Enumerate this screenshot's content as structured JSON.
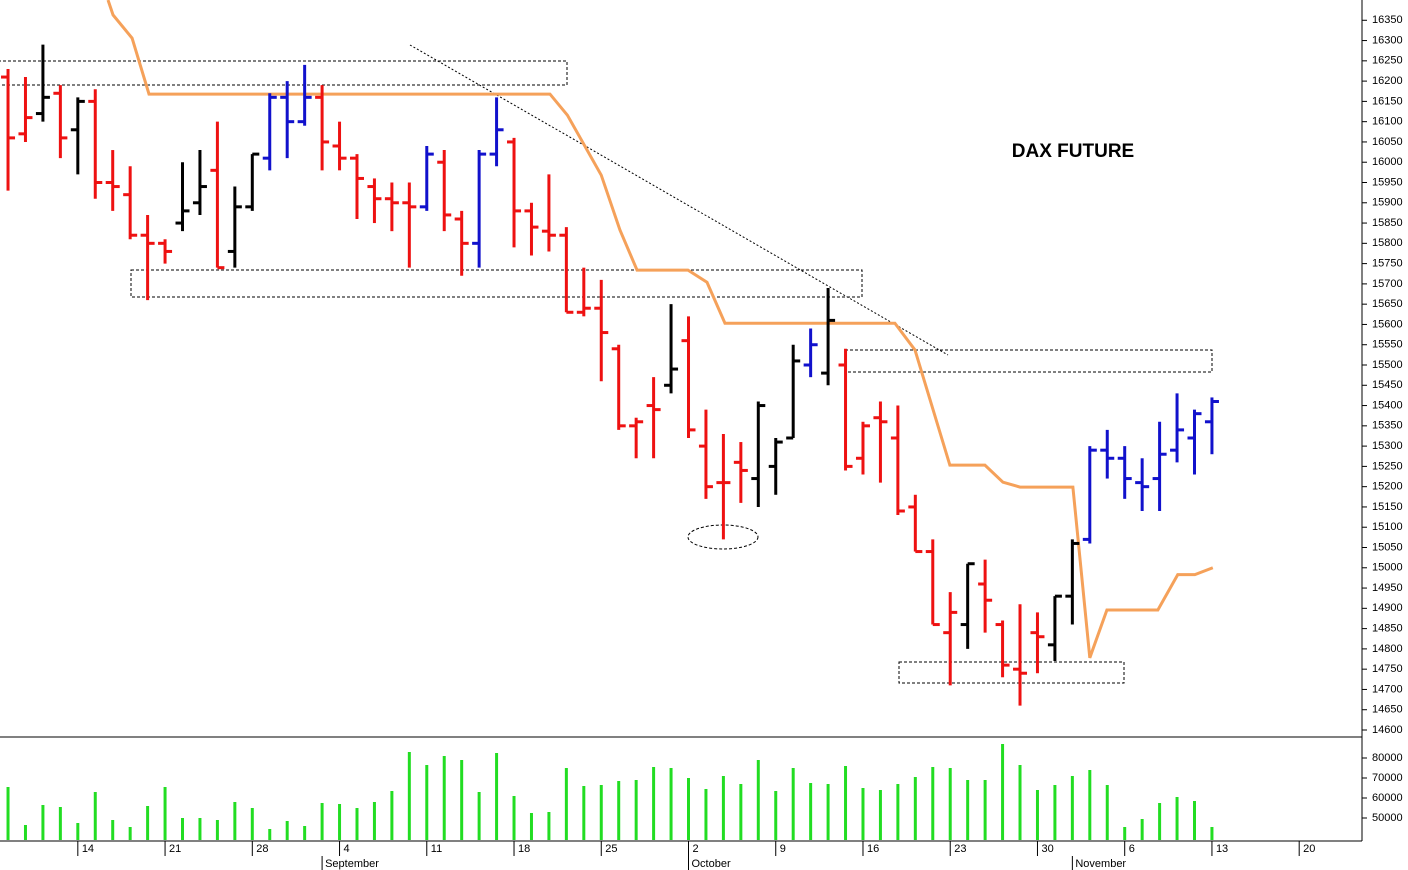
{
  "chart_data": {
    "type": "ohlc",
    "title": "DAX FUTURE",
    "x": [
      0,
      1,
      2,
      3,
      4,
      5,
      6,
      7,
      8,
      9,
      10,
      11,
      12,
      13,
      14,
      15,
      16,
      17,
      18,
      19,
      20,
      21,
      22,
      23,
      24,
      25,
      26,
      27,
      28,
      29,
      30,
      31,
      32,
      33,
      34,
      35,
      36,
      37,
      38,
      39,
      40,
      41,
      42,
      43,
      44,
      45,
      46,
      47,
      48,
      49,
      50,
      51,
      52,
      53,
      54,
      55,
      56,
      57,
      58,
      59,
      60,
      61,
      62,
      63,
      64,
      65,
      66,
      67,
      68,
      69
    ],
    "open": [
      16210,
      16070,
      16120,
      16170,
      16080,
      16150,
      15950,
      15920,
      15820,
      15800,
      15850,
      15900,
      15980,
      15780,
      15890,
      16010,
      16160,
      16100,
      16160,
      16040,
      16010,
      15940,
      15910,
      15900,
      15890,
      16000,
      15860,
      15800,
      16020,
      16050,
      15880,
      15830,
      15820,
      15630,
      15640,
      15540,
      15350,
      15400,
      15450,
      15560,
      15300,
      15210,
      15260,
      15220,
      15250,
      15320,
      15500,
      15480,
      15500,
      15270,
      15370,
      15320,
      15150,
      15040,
      14840,
      14860,
      14960,
      14860,
      14750,
      14840,
      14810,
      14930,
      15070,
      15290,
      15270,
      15210,
      15220,
      15290,
      15320,
      15360
    ],
    "high": [
      16230,
      16210,
      16290,
      16190,
      16160,
      16180,
      16030,
      15990,
      15870,
      15810,
      16000,
      16030,
      16100,
      15940,
      16020,
      16170,
      16200,
      16240,
      16190,
      16100,
      16020,
      15960,
      15950,
      15950,
      16040,
      16030,
      15880,
      16030,
      16160,
      16060,
      15900,
      15970,
      15840,
      15740,
      15710,
      15550,
      15370,
      15470,
      15650,
      15620,
      15390,
      15330,
      15310,
      15410,
      15320,
      15550,
      15590,
      15690,
      15540,
      15360,
      15410,
      15400,
      15180,
      15070,
      14940,
      15010,
      15020,
      14870,
      14910,
      14890,
      14930,
      15070,
      15300,
      15340,
      15300,
      15270,
      15360,
      15430,
      15390,
      15420
    ],
    "low": [
      15930,
      16050,
      16100,
      16010,
      15970,
      15910,
      15880,
      15810,
      15660,
      15750,
      15830,
      15870,
      15740,
      15740,
      15880,
      15980,
      16010,
      16090,
      15980,
      15980,
      15860,
      15850,
      15830,
      15740,
      15880,
      15830,
      15720,
      15740,
      15990,
      15790,
      15770,
      15780,
      15630,
      15620,
      15460,
      15340,
      15270,
      15270,
      15430,
      15320,
      15170,
      15070,
      15160,
      15150,
      15180,
      15320,
      15470,
      15450,
      15240,
      15230,
      15210,
      15130,
      15040,
      14860,
      14710,
      14800,
      14840,
      14730,
      14660,
      14740,
      14770,
      14860,
      15060,
      15220,
      15170,
      15140,
      15140,
      15260,
      15230,
      15280
    ],
    "close": [
      16060,
      16110,
      16160,
      16060,
      16150,
      15950,
      15940,
      15820,
      15800,
      15780,
      15880,
      15940,
      15740,
      15890,
      16020,
      16160,
      16100,
      16160,
      16050,
      16010,
      15960,
      15910,
      15900,
      15890,
      16020,
      15870,
      15800,
      16020,
      16080,
      15880,
      15840,
      15820,
      15630,
      15640,
      15580,
      15350,
      15360,
      15390,
      15490,
      15340,
      15200,
      15210,
      15240,
      15400,
      15310,
      15510,
      15550,
      15610,
      15250,
      15350,
      15360,
      15140,
      15040,
      14860,
      14890,
      15010,
      14920,
      14760,
      14740,
      14830,
      14930,
      15060,
      15290,
      15270,
      15220,
      15200,
      15280,
      15340,
      15380,
      15410
    ],
    "bar_colors": [
      "#ee1111",
      "#ee1111",
      "#000000",
      "#ee1111",
      "#000000",
      "#ee1111",
      "#ee1111",
      "#ee1111",
      "#ee1111",
      "#ee1111",
      "#000000",
      "#000000",
      "#ee1111",
      "#000000",
      "#000000",
      "#1111cc",
      "#1111cc",
      "#1111cc",
      "#ee1111",
      "#ee1111",
      "#ee1111",
      "#ee1111",
      "#ee1111",
      "#ee1111",
      "#1111cc",
      "#ee1111",
      "#ee1111",
      "#1111cc",
      "#1111cc",
      "#ee1111",
      "#ee1111",
      "#ee1111",
      "#ee1111",
      "#ee1111",
      "#ee1111",
      "#ee1111",
      "#ee1111",
      "#ee1111",
      "#000000",
      "#ee1111",
      "#ee1111",
      "#ee1111",
      "#ee1111",
      "#000000",
      "#000000",
      "#000000",
      "#1111cc",
      "#000000",
      "#ee1111",
      "#ee1111",
      "#ee1111",
      "#ee1111",
      "#ee1111",
      "#ee1111",
      "#ee1111",
      "#000000",
      "#ee1111",
      "#ee1111",
      "#ee1111",
      "#ee1111",
      "#000000",
      "#000000",
      "#1111cc",
      "#1111cc",
      "#1111cc",
      "#1111cc",
      "#1111cc",
      "#1111cc",
      "#1111cc",
      "#1111cc"
    ],
    "xlim": [
      -0.46,
      77.6
    ],
    "ylim": [
      14600,
      16400
    ],
    "yticks": [
      14600,
      14650,
      14700,
      14750,
      14800,
      14850,
      14900,
      14950,
      15000,
      15050,
      15100,
      15150,
      15200,
      15250,
      15300,
      15350,
      15400,
      15450,
      15500,
      15550,
      15600,
      15650,
      15700,
      15750,
      15800,
      15850,
      15900,
      15950,
      16000,
      16050,
      16100,
      16150,
      16200,
      16250,
      16300,
      16350
    ],
    "xticks": [
      {
        "value": 4,
        "label": "14"
      },
      {
        "value": 9,
        "label": "21"
      },
      {
        "value": 14,
        "label": "28"
      },
      {
        "value": 19,
        "label": "4"
      },
      {
        "value": 24,
        "label": "11"
      },
      {
        "value": 29,
        "label": "18"
      },
      {
        "value": 34,
        "label": "25"
      },
      {
        "value": 39,
        "label": "2"
      },
      {
        "value": 44,
        "label": "9"
      },
      {
        "value": 49,
        "label": "16"
      },
      {
        "value": 54,
        "label": "23"
      },
      {
        "value": 59,
        "label": "30"
      },
      {
        "value": 64,
        "label": "6"
      },
      {
        "value": 69,
        "label": "13"
      },
      {
        "value": 74,
        "label": "20"
      }
    ],
    "month_ticks": [
      {
        "value": 18,
        "label": "September"
      },
      {
        "value": 39,
        "label": "October"
      },
      {
        "value": 61,
        "label": "November"
      }
    ],
    "stop_line": {
      "color": "#f5a15a",
      "x": [
        5.73,
        6.02,
        7.11,
        8.08,
        31.06,
        32.06,
        34.0,
        35.07,
        36.05,
        38.97,
        40.06,
        41.09,
        50.83,
        51.98,
        53.98,
        55.99,
        57.02,
        58.0,
        61.03,
        62.0,
        62.98,
        65.9,
        67.04,
        68.02,
        69.05
      ],
      "values": [
        16400,
        16363,
        16306,
        16168,
        16168,
        16116,
        15968,
        15833,
        15734,
        15734,
        15704,
        15603,
        15603,
        15537,
        15253,
        15253,
        15211,
        15199,
        15199,
        14778,
        14896,
        14896,
        14983,
        14983,
        15000
      ]
    },
    "volume": {
      "color": "#22dd22",
      "ylim": [
        39000,
        90000
      ],
      "yticks": [
        50000,
        60000,
        70000,
        80000
      ],
      "values": [
        65500,
        46500,
        56500,
        55500,
        47500,
        63000,
        49000,
        45500,
        56000,
        65500,
        50000,
        50000,
        49000,
        58000,
        55000,
        44500,
        48500,
        46000,
        57500,
        57000,
        55000,
        58000,
        63500,
        83000,
        76500,
        81000,
        79000,
        63000,
        82500,
        61000,
        52500,
        53000,
        75000,
        66000,
        66500,
        68500,
        69000,
        75500,
        75000,
        70000,
        64500,
        71000,
        67000,
        79000,
        63500,
        75000,
        67500,
        67000,
        76000,
        65000,
        64000,
        67000,
        70500,
        75500,
        75000,
        69000,
        69000,
        87000,
        76500,
        64000,
        66500,
        71000,
        74000,
        66500,
        45500,
        49500,
        57500,
        60500,
        58500,
        45500
      ]
    }
  }
}
